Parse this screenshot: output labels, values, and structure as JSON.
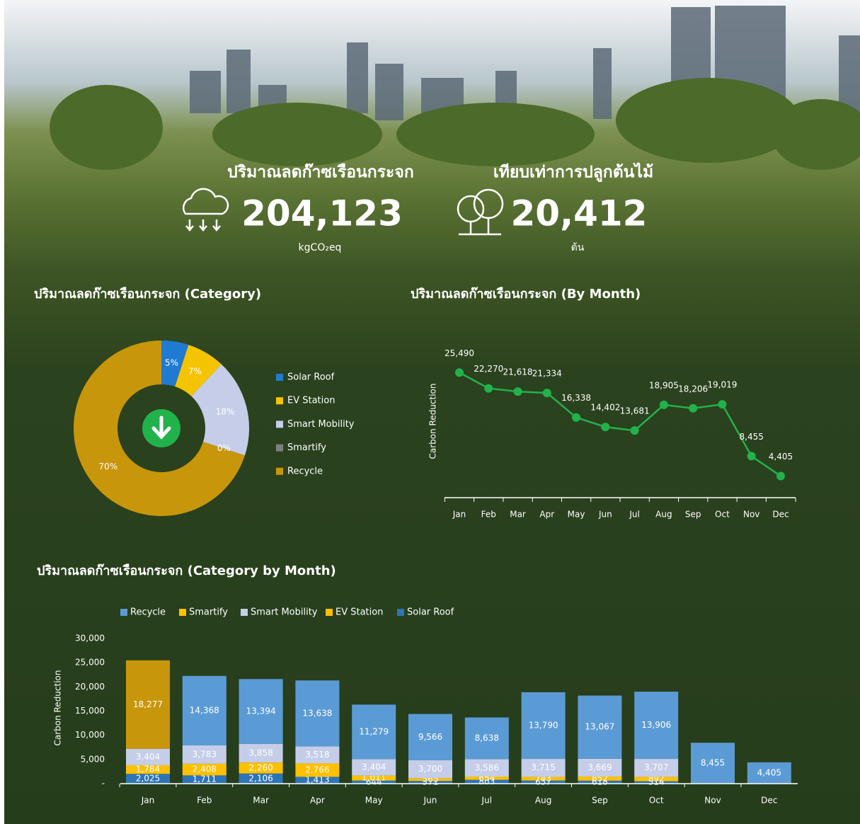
{
  "kpis": [
    {
      "label": "ปริมาณลดก๊าซเรือนกระจก",
      "value": "204,123",
      "unit": "kgCO₂eq"
    },
    {
      "label": "เทียบเท่าการปลูกต้นไม้",
      "value": "20,412",
      "unit": "ต้น"
    }
  ],
  "chart_data": [
    {
      "type": "donut",
      "title": "ปริมาณลดก๊าซเรือนกระจก (Category)",
      "categories": [
        "Solar Roof",
        "EV Station",
        "Smart Mobility",
        "Smartify",
        "Recycle"
      ],
      "values": [
        5,
        7,
        18,
        0,
        70
      ],
      "value_labels": [
        "5%",
        "7%",
        "18%",
        "0%",
        "70%"
      ],
      "colors": [
        "#1f7bd1",
        "#f5c400",
        "#c5cde8",
        "#7f7f7f",
        "#c8960a"
      ]
    },
    {
      "type": "line",
      "title": "ปริมาณลดก๊าซเรือนกระจก (By Month)",
      "ylabel": "Carbon Reduction",
      "categories": [
        "Jan",
        "Feb",
        "Mar",
        "Apr",
        "May",
        "Jun",
        "Jul",
        "Aug",
        "Sep",
        "Oct",
        "Nov",
        "Dec"
      ],
      "values": [
        25490,
        22270,
        21618,
        21334,
        16338,
        14402,
        13681,
        18905,
        18206,
        19019,
        8455,
        4405
      ],
      "value_labels": [
        "25,490",
        "22,270",
        "21,618",
        "21,334",
        "16,338",
        "14,402",
        "13,681",
        "18,905",
        "18,206",
        "19,019",
        "8,455",
        "4,405"
      ],
      "color": "#22b24c",
      "ylim": [
        0,
        30000
      ]
    },
    {
      "type": "stacked-bar",
      "title": "ปริมาณลดก๊าซเรือนกระจก (Category by Month)",
      "ylabel": "Carbon Reduction",
      "categories": [
        "Jan",
        "Feb",
        "Mar",
        "Apr",
        "May",
        "Jun",
        "Jul",
        "Aug",
        "Sep",
        "Oct",
        "Nov",
        "Dec"
      ],
      "ylim": [
        0,
        30000
      ],
      "yticks": [
        {
          "value": 0,
          "label": "-"
        },
        {
          "value": 5000,
          "label": "5,000"
        },
        {
          "value": 10000,
          "label": "10,000"
        },
        {
          "value": 15000,
          "label": "15,000"
        },
        {
          "value": 20000,
          "label": "20,000"
        },
        {
          "value": 25000,
          "label": "25,000"
        },
        {
          "value": 30000,
          "label": "30,000"
        }
      ],
      "series": [
        {
          "name": "Recycle",
          "color": "#5b9bd5",
          "colors": [
            "#c8960a",
            "#5b9bd5",
            "#5b9bd5",
            "#5b9bd5",
            "#5b9bd5",
            "#5b9bd5",
            "#5b9bd5",
            "#5b9bd5",
            "#5b9bd5",
            "#5b9bd5",
            "#5b9bd5",
            "#5b9bd5"
          ],
          "values": [
            18277,
            14368,
            13394,
            13638,
            11279,
            9566,
            8638,
            13790,
            13067,
            13906,
            8455,
            4405
          ],
          "value_labels": [
            "18,277",
            "14,368",
            "13,394",
            "13,638",
            "11,279",
            "9,566",
            "8,638",
            "13,790",
            "13,067",
            "13,906",
            "8,455",
            "4,405"
          ]
        },
        {
          "name": "Smartify",
          "color": "#ffc000",
          "values": [
            0,
            0,
            0,
            0,
            0,
            0,
            0,
            0,
            0,
            0,
            0,
            0
          ]
        },
        {
          "name": "Smart Mobility",
          "color": "#c5cde8",
          "values": [
            3404,
            3783,
            3858,
            3518,
            3404,
            3700,
            3586,
            3715,
            3669,
            3707,
            0,
            0
          ],
          "value_labels": [
            "3,404",
            "3,783",
            "3,858",
            "3,518",
            "3,404",
            "3,700",
            "3,586",
            "3,715",
            "3,669",
            "3,707",
            null,
            null
          ]
        },
        {
          "name": "EV Station",
          "color": "#ffc000",
          "values": [
            1784,
            2408,
            2260,
            2766,
            1011,
            565,
            654,
            743,
            852,
            892,
            0,
            0
          ],
          "value_labels": [
            "1,784",
            "2,408",
            "2,260",
            "2,766",
            "1,011",
            "565",
            "654",
            "743",
            "852",
            "892",
            null,
            null
          ]
        },
        {
          "name": "Solar Roof",
          "color": "#2e75b6",
          "values": [
            2025,
            1711,
            2106,
            1413,
            644,
            571,
            803,
            657,
            618,
            514,
            0,
            0
          ],
          "value_labels": [
            "2,025",
            "1,711",
            "2,106",
            "1,413",
            "644",
            "571",
            "803",
            "657",
            "618",
            "514",
            null,
            null
          ]
        }
      ]
    }
  ]
}
